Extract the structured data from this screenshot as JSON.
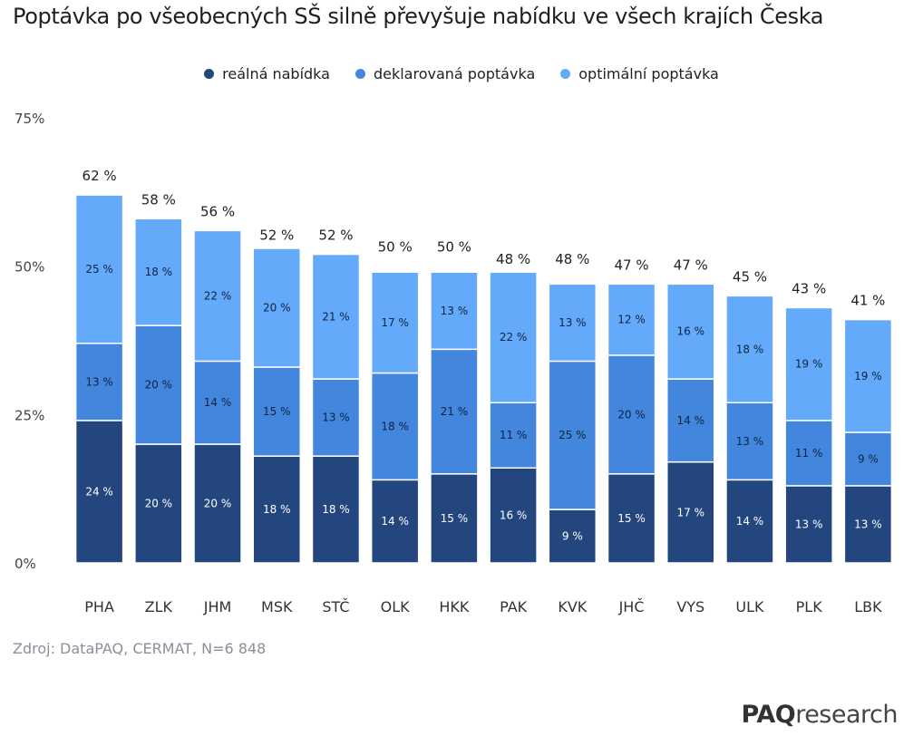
{
  "title": "Poptávka po všeobecných SŠ silně převyšuje nabídku ve všech krajích Česka",
  "source": "Zdroj: DataPAQ, CERMAT, N=6 848",
  "brand": {
    "bold": "PAQ",
    "light": "research"
  },
  "colors": {
    "real": "#23467f",
    "declared": "#4287dd",
    "optimal": "#63aafb"
  },
  "chart_data": {
    "type": "bar",
    "stacked": true,
    "title": "Poptávka po všeobecných SŠ silně převyšuje nabídku ve všech krajích Česka",
    "xlabel": "",
    "ylabel": "",
    "ylim": [
      0,
      75
    ],
    "yticks": [
      "0%",
      "25%",
      "50%",
      "75%"
    ],
    "ytick_values": [
      0,
      25,
      50,
      75
    ],
    "grid": false,
    "legend_position": "top",
    "categories": [
      "PHA",
      "ZLK",
      "JHM",
      "MSK",
      "STČ",
      "OLK",
      "HKK",
      "PAK",
      "KVK",
      "JHČ",
      "VYS",
      "ULK",
      "PLK",
      "LBK"
    ],
    "totals": [
      "62 %",
      "58 %",
      "56 %",
      "52 %",
      "52 %",
      "50 %",
      "50 %",
      "48 %",
      "48 %",
      "47 %",
      "47 %",
      "45 %",
      "43 %",
      "41 %"
    ],
    "total_values": [
      62,
      58,
      56,
      52,
      52,
      50,
      50,
      48,
      48,
      47,
      47,
      45,
      43,
      41
    ],
    "series": [
      {
        "name": "reálná nabídka",
        "color": "#23467f",
        "values": [
          24,
          20,
          20,
          18,
          18,
          14,
          15,
          16,
          9,
          15,
          17,
          14,
          13,
          13
        ],
        "labels": [
          "24 %",
          "20 %",
          "20 %",
          "18 %",
          "18 %",
          "14 %",
          "15 %",
          "16 %",
          "9 %",
          "15 %",
          "17 %",
          "14 %",
          "13 %",
          "13 %"
        ]
      },
      {
        "name": "deklarovaná poptávka",
        "color": "#4287dd",
        "values": [
          13,
          20,
          14,
          15,
          13,
          18,
          21,
          11,
          25,
          20,
          14,
          13,
          11,
          9
        ],
        "labels": [
          "13 %",
          "20 %",
          "14 %",
          "15 %",
          "13 %",
          "18 %",
          "21 %",
          "11 %",
          "25 %",
          "20 %",
          "14 %",
          "13 %",
          "11 %",
          "9 %"
        ]
      },
      {
        "name": "optimální poptávka",
        "color": "#63aafb",
        "values": [
          25,
          18,
          22,
          20,
          21,
          17,
          13,
          22,
          13,
          12,
          16,
          18,
          19,
          19
        ],
        "labels": [
          "25 %",
          "18 %",
          "22 %",
          "20 %",
          "21 %",
          "17 %",
          "13 %",
          "22 %",
          "13 %",
          "12 %",
          "16 %",
          "18 %",
          "19 %",
          "19 %"
        ]
      }
    ]
  }
}
